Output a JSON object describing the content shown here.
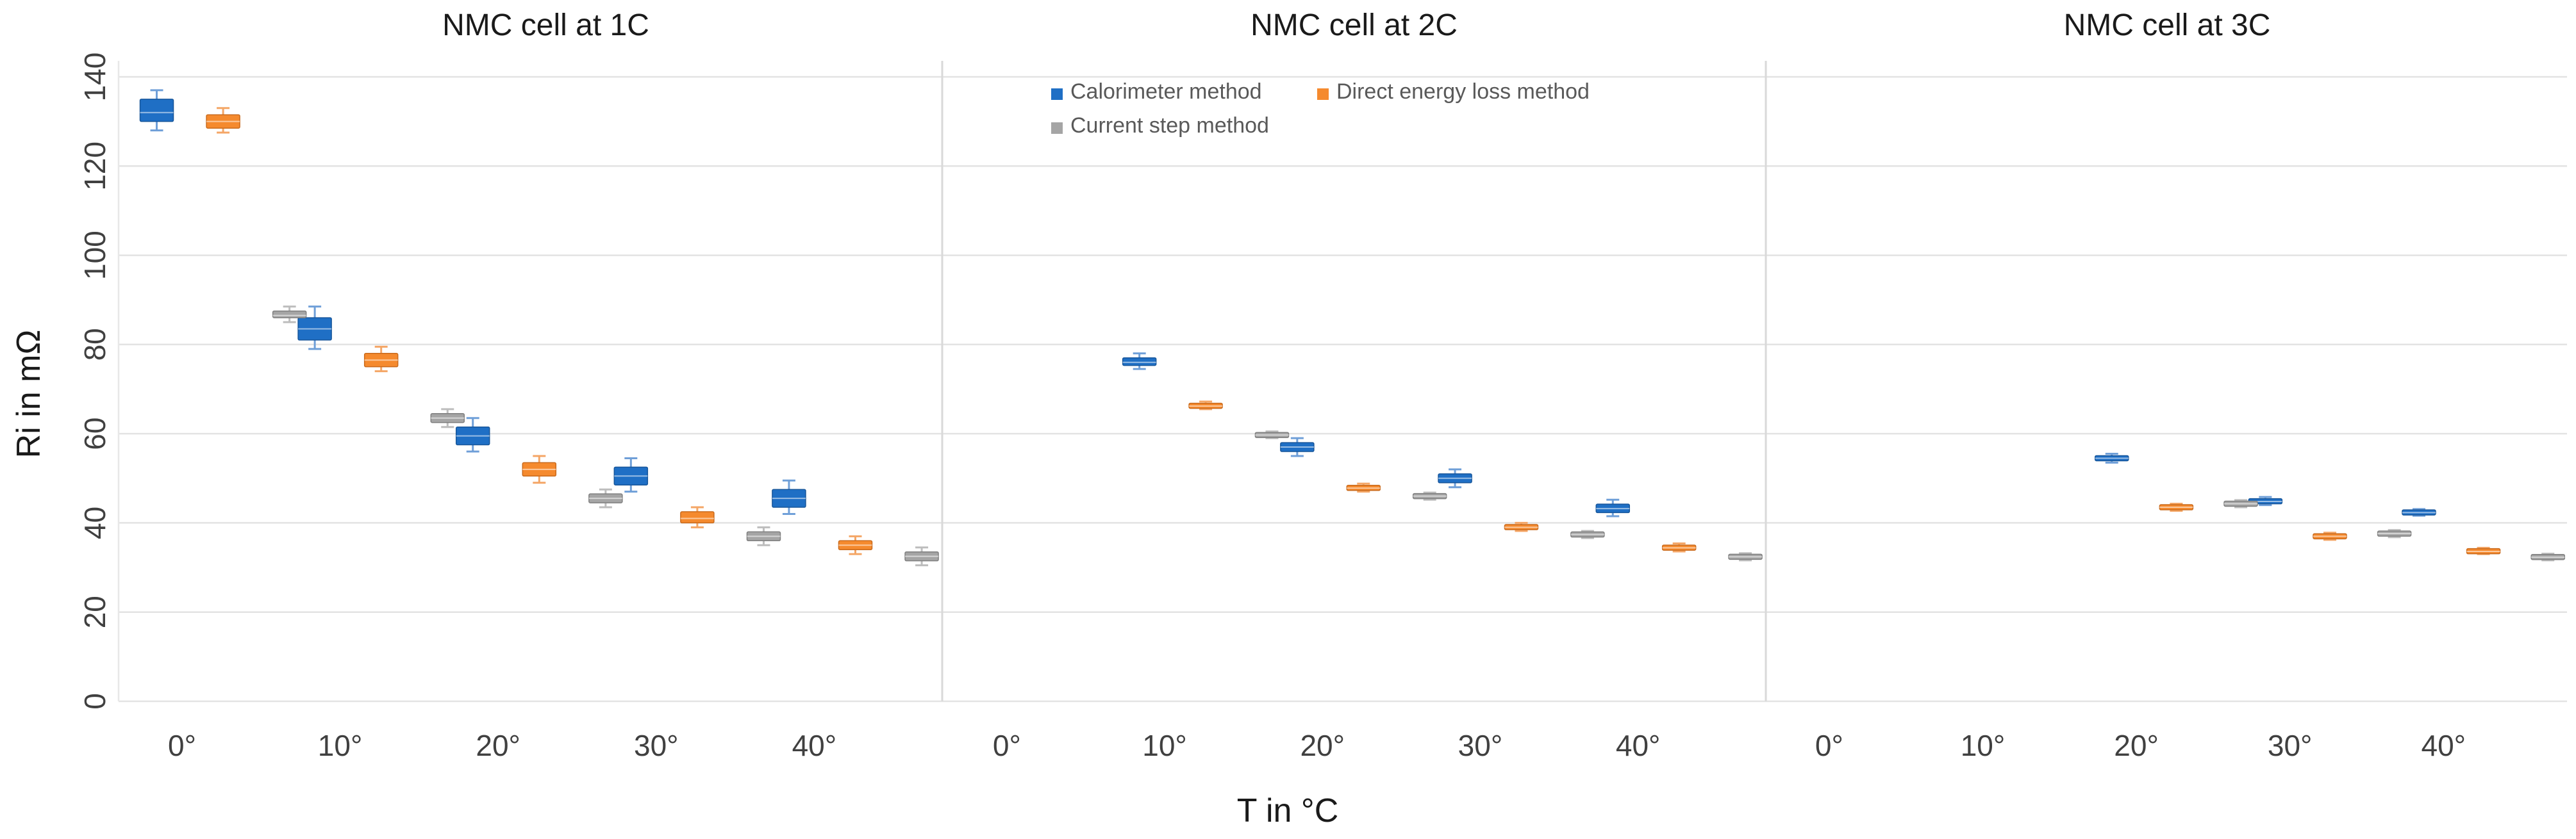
{
  "chart_data": {
    "type": "box",
    "ylabel": "Ri in mΩ",
    "xlabel": "T in °C",
    "ylim": [
      0,
      140
    ],
    "yticks": [
      "0",
      "20",
      "40",
      "60",
      "80",
      "100",
      "120",
      "140"
    ],
    "categories": [
      "0°",
      "10°",
      "20°",
      "30°",
      "40°"
    ],
    "legend": {
      "position": "top-center of middle panel",
      "entries": [
        "Calorimeter method",
        "Direct energy loss method",
        "Current step method"
      ]
    },
    "colors": {
      "calorimeter": "#1f6fc5",
      "direct": "#f58a2e",
      "current": "#a5a5a5"
    },
    "panels": [
      {
        "title": "NMC cell at 1C",
        "series": [
          {
            "name": "Calorimeter method",
            "boxes": [
              {
                "category": "0°",
                "min": 128,
                "q1": 130,
                "median": 132,
                "q3": 135,
                "max": 137
              },
              {
                "category": "10°",
                "min": 79,
                "q1": 81,
                "median": 83.5,
                "q3": 86,
                "max": 88.5
              },
              {
                "category": "20°",
                "min": 56,
                "q1": 57.5,
                "median": 59.5,
                "q3": 61.5,
                "max": 63.5
              },
              {
                "category": "30°",
                "min": 47,
                "q1": 48.5,
                "median": 50.5,
                "q3": 52.5,
                "max": 54.5
              },
              {
                "category": "40°",
                "min": 42,
                "q1": 43.5,
                "median": 45.5,
                "q3": 47.5,
                "max": 49.5
              }
            ]
          },
          {
            "name": "Direct energy loss method",
            "boxes": [
              {
                "category": "0°",
                "min": 127.5,
                "q1": 128.5,
                "median": 130,
                "q3": 131.5,
                "max": 133
              },
              {
                "category": "10°",
                "min": 74,
                "q1": 75,
                "median": 76.5,
                "q3": 78,
                "max": 79.5
              },
              {
                "category": "20°",
                "min": 49,
                "q1": 50.5,
                "median": 52,
                "q3": 53.5,
                "max": 55
              },
              {
                "category": "30°",
                "min": 39,
                "q1": 40,
                "median": 41,
                "q3": 42.5,
                "max": 43.5
              },
              {
                "category": "40°",
                "min": 33,
                "q1": 34,
                "median": 35,
                "q3": 36,
                "max": 37
              }
            ]
          },
          {
            "name": "Current step method",
            "boxes": [
              {
                "category": "0°",
                "min": 85,
                "q1": 86,
                "median": 86.5,
                "q3": 87.5,
                "max": 88.5
              },
              {
                "category": "10°",
                "min": 61.5,
                "q1": 62.5,
                "median": 63.5,
                "q3": 64.5,
                "max": 65.5
              },
              {
                "category": "20°",
                "min": 43.5,
                "q1": 44.5,
                "median": 45.5,
                "q3": 46.5,
                "max": 47.5
              },
              {
                "category": "30°",
                "min": 35,
                "q1": 36,
                "median": 37,
                "q3": 38,
                "max": 39
              },
              {
                "category": "40°",
                "min": 30.5,
                "q1": 31.5,
                "median": 32.5,
                "q3": 33.5,
                "max": 34.5
              }
            ]
          }
        ]
      },
      {
        "title": "NMC cell at 2C",
        "series": [
          {
            "name": "Calorimeter method",
            "boxes": [
              {
                "category": "10°",
                "min": 74.5,
                "q1": 75.3,
                "median": 76,
                "q3": 77,
                "max": 78
              },
              {
                "category": "20°",
                "min": 55,
                "q1": 56,
                "median": 57,
                "q3": 58,
                "max": 59
              },
              {
                "category": "30°",
                "min": 48,
                "q1": 49,
                "median": 50,
                "q3": 51,
                "max": 52
              },
              {
                "category": "40°",
                "min": 41.5,
                "q1": 42.3,
                "median": 43.2,
                "q3": 44.2,
                "max": 45.2
              }
            ]
          },
          {
            "name": "Direct energy loss method",
            "boxes": [
              {
                "category": "10°",
                "min": 65.5,
                "q1": 65.8,
                "median": 66.2,
                "q3": 66.7,
                "max": 67.2
              },
              {
                "category": "20°",
                "min": 47,
                "q1": 47.4,
                "median": 47.8,
                "q3": 48.3,
                "max": 48.8
              },
              {
                "category": "30°",
                "min": 38.2,
                "q1": 38.6,
                "median": 39,
                "q3": 39.5,
                "max": 40
              },
              {
                "category": "40°",
                "min": 33.6,
                "q1": 34,
                "median": 34.4,
                "q3": 34.9,
                "max": 35.4
              }
            ]
          },
          {
            "name": "Current step method",
            "boxes": [
              {
                "category": "10°",
                "min": 59,
                "q1": 59.3,
                "median": 59.7,
                "q3": 60.1,
                "max": 60.5
              },
              {
                "category": "20°",
                "min": 45.2,
                "q1": 45.6,
                "median": 46,
                "q3": 46.4,
                "max": 46.8
              },
              {
                "category": "30°",
                "min": 36.6,
                "q1": 37,
                "median": 37.4,
                "q3": 37.8,
                "max": 38.2
              },
              {
                "category": "40°",
                "min": 31.6,
                "q1": 32,
                "median": 32.4,
                "q3": 32.8,
                "max": 33.2
              }
            ]
          }
        ]
      },
      {
        "title": "NMC cell at 3C",
        "series": [
          {
            "name": "Calorimeter method",
            "boxes": [
              {
                "category": "20°",
                "min": 53.5,
                "q1": 54,
                "median": 54.5,
                "q3": 55,
                "max": 55.5
              },
              {
                "category": "30°",
                "min": 44,
                "q1": 44.4,
                "median": 44.8,
                "q3": 45.3,
                "max": 45.8
              },
              {
                "category": "40°",
                "min": 41.6,
                "q1": 42,
                "median": 42.3,
                "q3": 42.7,
                "max": 43.1
              }
            ]
          },
          {
            "name": "Direct energy loss method",
            "boxes": [
              {
                "category": "20°",
                "min": 42.7,
                "q1": 43.1,
                "median": 43.5,
                "q3": 43.9,
                "max": 44.3
              },
              {
                "category": "30°",
                "min": 36.2,
                "q1": 36.6,
                "median": 37,
                "q3": 37.4,
                "max": 37.8
              },
              {
                "category": "40°",
                "min": 33,
                "q1": 33.3,
                "median": 33.6,
                "q3": 34,
                "max": 34.4
              }
            ]
          },
          {
            "name": "Current step method",
            "boxes": [
              {
                "category": "20°",
                "min": 43.5,
                "q1": 43.9,
                "median": 44.3,
                "q3": 44.7,
                "max": 45.1
              },
              {
                "category": "30°",
                "min": 36.8,
                "q1": 37.2,
                "median": 37.6,
                "q3": 38,
                "max": 38.4
              },
              {
                "category": "40°",
                "min": 31.6,
                "q1": 32,
                "median": 32.3,
                "q3": 32.7,
                "max": 33.1
              }
            ]
          }
        ]
      }
    ]
  }
}
